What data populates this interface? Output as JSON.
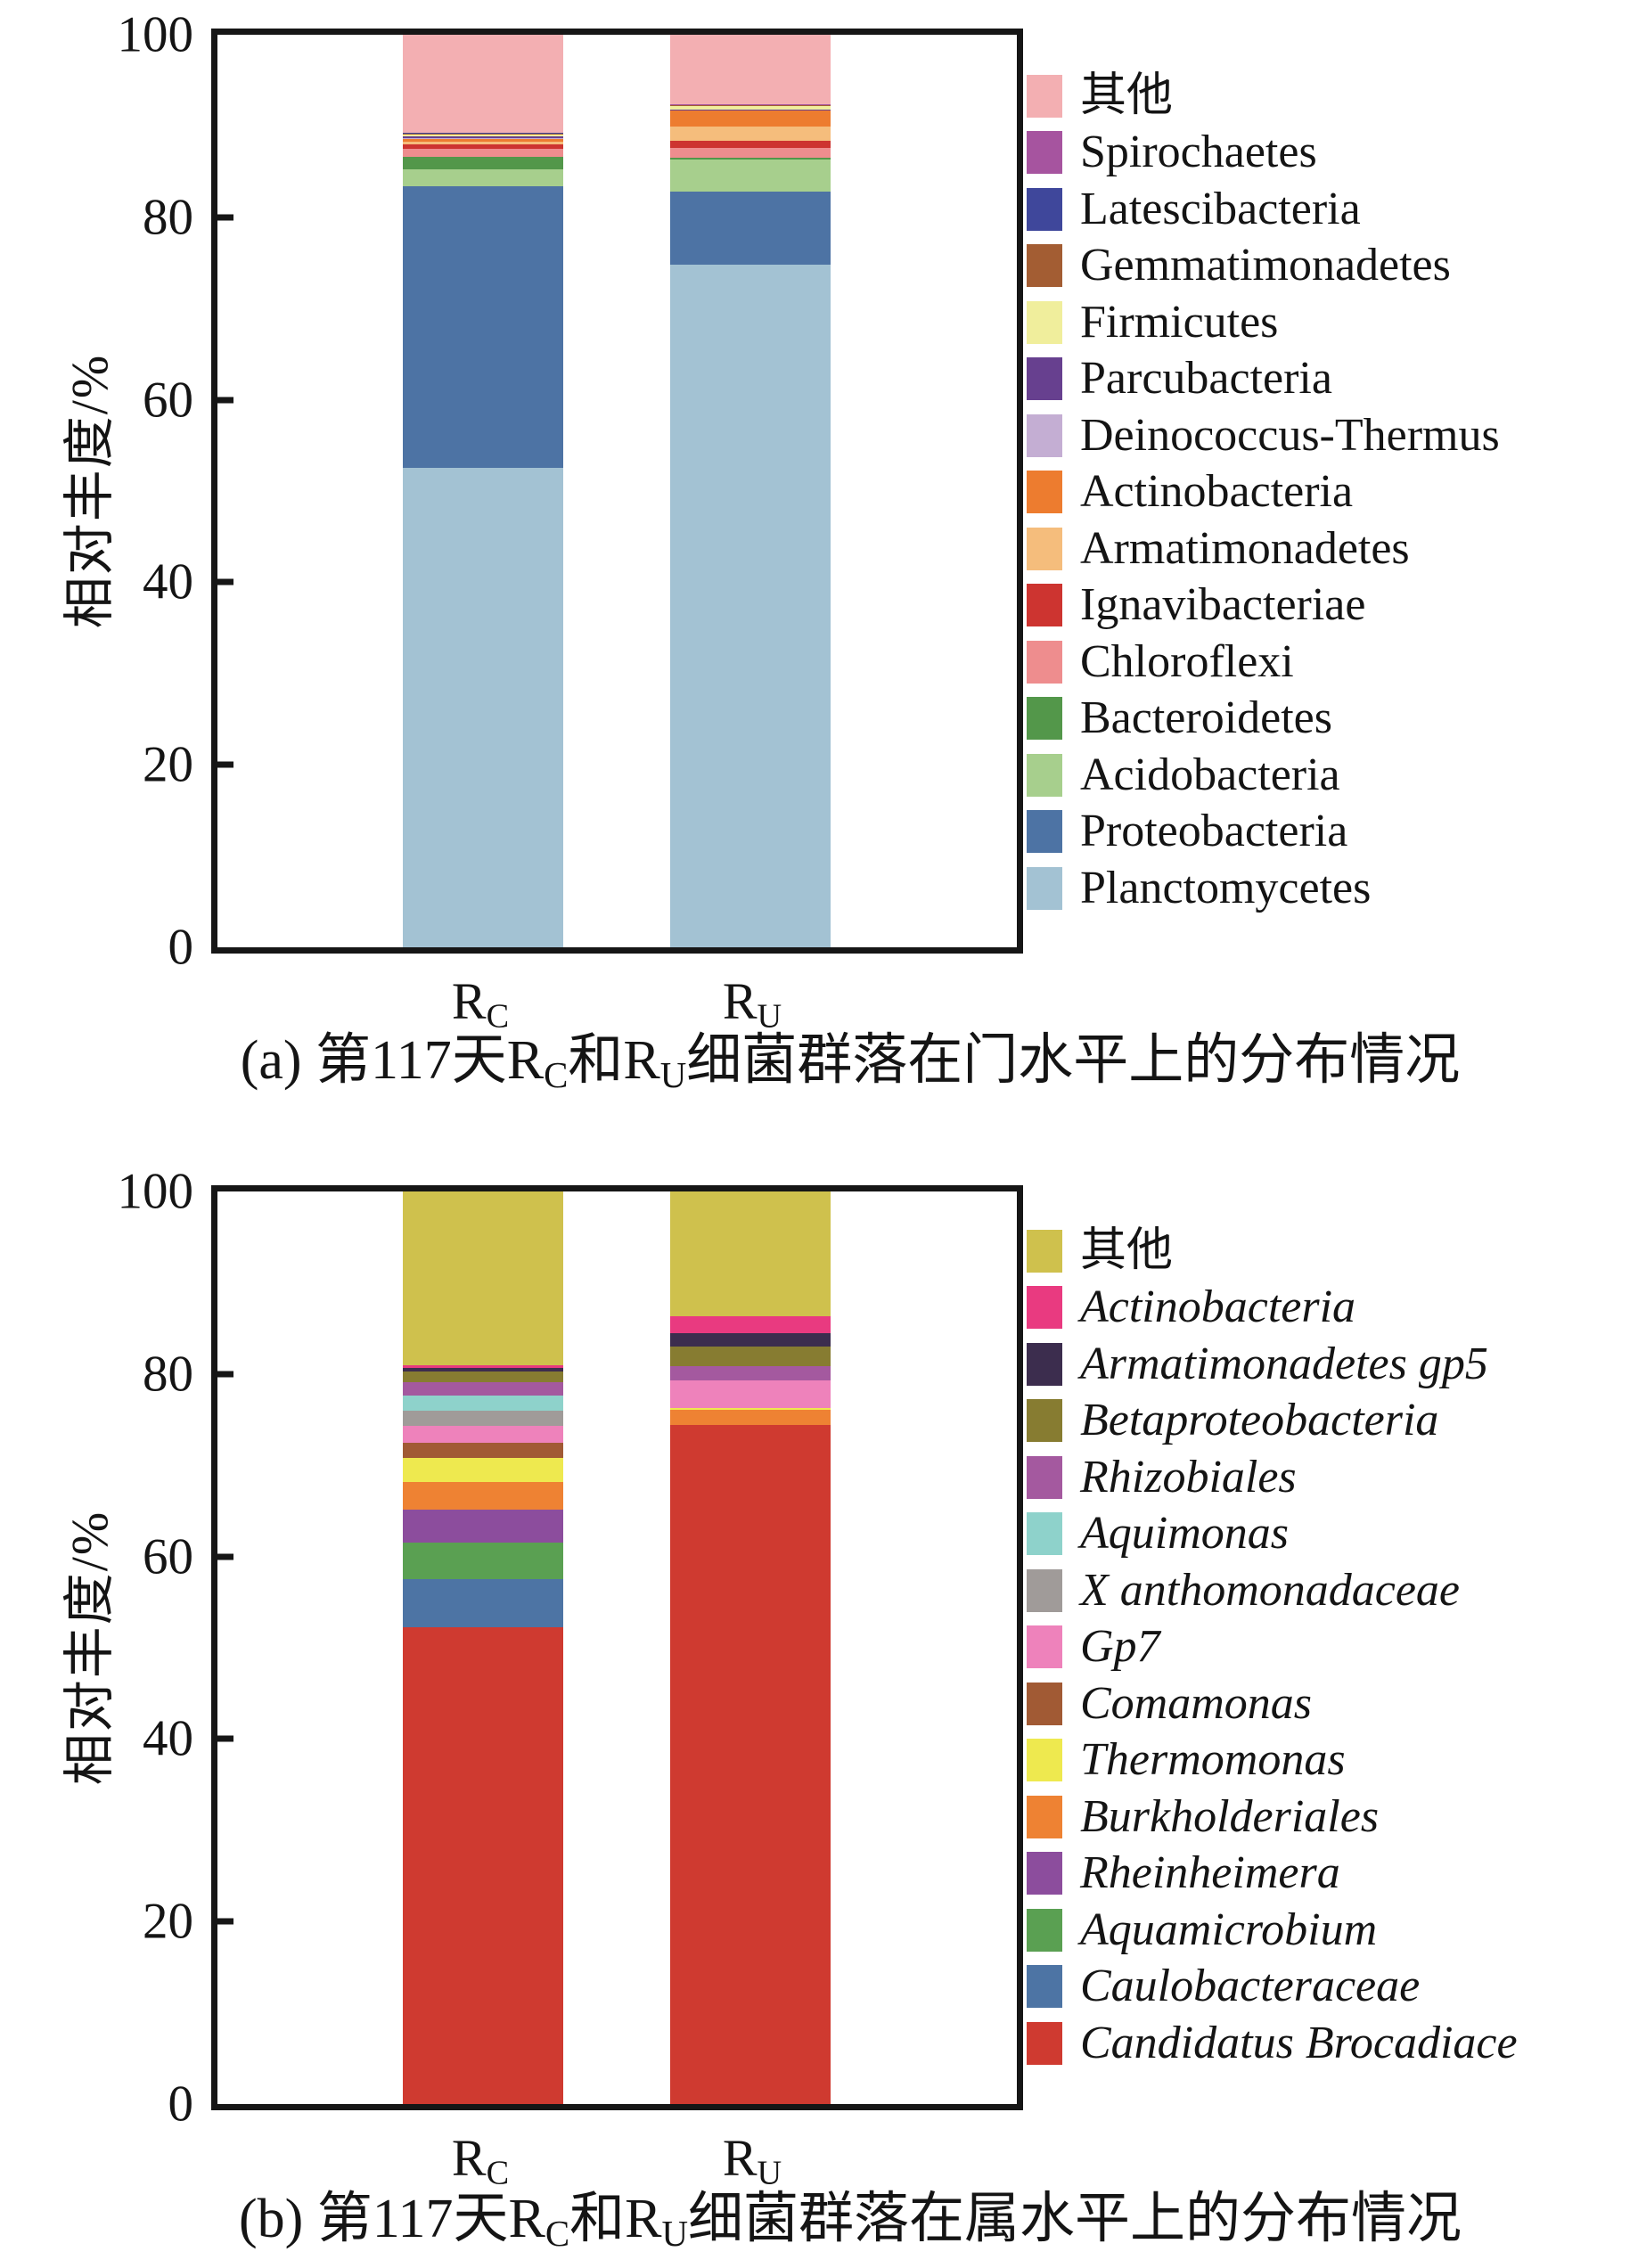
{
  "figure": {
    "y_axis_label": "相对丰度/%",
    "y_ticks": [
      100,
      80,
      60,
      40,
      20,
      0
    ]
  },
  "chart_data": [
    {
      "id": "a",
      "type": "bar",
      "subtype": "stacked-vertical",
      "title": "(a) 第117天RC和RU细菌群落在门水平上的分布情况",
      "caption_segments": [
        {
          "t": "(a) 第117天R"
        },
        {
          "t": "C",
          "sub": true
        },
        {
          "t": "和R"
        },
        {
          "t": "U",
          "sub": true
        },
        {
          "t": "细菌群落在门水平上的分布情况"
        }
      ],
      "ylabel": "相对丰度/%",
      "ylim": [
        0,
        100
      ],
      "grid": false,
      "legend_position": "right-outside",
      "legend_italic": false,
      "categories": [
        "RC",
        "RU"
      ],
      "category_labels": [
        {
          "main": "R",
          "sub": "C"
        },
        {
          "main": "R",
          "sub": "U"
        }
      ],
      "series_bottom_to_top": [
        {
          "name": "Planctomycetes",
          "color": "#a3c2d3",
          "values": [
            52.5,
            74.8
          ]
        },
        {
          "name": "Proteobacteria",
          "color": "#4d73a4",
          "values": [
            30.9,
            8.0
          ]
        },
        {
          "name": "Acidobacteria",
          "color": "#a7cf8d",
          "values": [
            1.9,
            3.5
          ]
        },
        {
          "name": "Bacteroidetes",
          "color": "#53974a",
          "values": [
            1.3,
            0.2
          ]
        },
        {
          "name": "Chloroflexi",
          "color": "#ee8d8e",
          "values": [
            0.9,
            1.1
          ]
        },
        {
          "name": "Ignavibacteriae",
          "color": "#cd3430",
          "values": [
            0.5,
            0.8
          ]
        },
        {
          "name": "Armatimonadetes",
          "color": "#f5bd7c",
          "values": [
            0.25,
            1.55
          ]
        },
        {
          "name": "Actinobacteria",
          "color": "#ed7c2f",
          "values": [
            0.35,
            1.75
          ]
        },
        {
          "name": "Deinococcus-Thermus",
          "color": "#c4aed3",
          "values": [
            0.05,
            0.05
          ]
        },
        {
          "name": "Parcubacteria",
          "color": "#67408f",
          "values": [
            0.2,
            0.05
          ]
        },
        {
          "name": "Firmicutes",
          "color": "#f0ee9c",
          "values": [
            0.25,
            0.4
          ]
        },
        {
          "name": "Gemmatimonadetes",
          "color": "#a35d33",
          "values": [
            0.05,
            0.05
          ]
        },
        {
          "name": "Latescibacteria",
          "color": "#3f479b",
          "values": [
            0.1,
            0.05
          ]
        },
        {
          "name": "Spirochaetes",
          "color": "#a6549f",
          "values": [
            0.05,
            0.05
          ]
        },
        {
          "name": "其他",
          "color": "#f3afb2",
          "values": [
            10.7,
            7.65
          ]
        }
      ]
    },
    {
      "id": "b",
      "type": "bar",
      "subtype": "stacked-vertical",
      "title": "(b) 第117天RC和RU细菌群落在属水平上的分布情况",
      "caption_segments": [
        {
          "t": "(b) 第117天R"
        },
        {
          "t": "C",
          "sub": true
        },
        {
          "t": "和R"
        },
        {
          "t": "U",
          "sub": true
        },
        {
          "t": "细菌群落在属水平上的分布情况"
        }
      ],
      "ylabel": "相对丰度/%",
      "ylim": [
        0,
        100
      ],
      "grid": false,
      "legend_position": "right-outside",
      "legend_italic": true,
      "categories": [
        "RC",
        "RU"
      ],
      "category_labels": [
        {
          "main": "R",
          "sub": "C"
        },
        {
          "main": "R",
          "sub": "U"
        }
      ],
      "series_bottom_to_top": [
        {
          "name": "Candidatus Brocadiace",
          "color": "#cf3a30",
          "values": [
            52.2,
            74.4
          ]
        },
        {
          "name": "Caulobacteraceae",
          "color": "#4d74a4",
          "values": [
            5.3,
            0
          ]
        },
        {
          "name": "Aquamicrobium",
          "color": "#5aa052",
          "values": [
            4.0,
            0
          ]
        },
        {
          "name": "Rheinheimera",
          "color": "#8c4d9d",
          "values": [
            3.6,
            0
          ]
        },
        {
          "name": "Burkholderiales",
          "color": "#ee8233",
          "values": [
            3.1,
            1.7
          ]
        },
        {
          "name": "Thermomonas",
          "color": "#eee94f",
          "values": [
            2.6,
            0.2
          ]
        },
        {
          "name": "Comamonas",
          "color": "#a15a34",
          "values": [
            1.7,
            0
          ]
        },
        {
          "name": "Gp7",
          "color": "#ee82bb",
          "values": [
            1.8,
            3.0
          ]
        },
        {
          "name": "X anthomonadaceae",
          "color": "#a09b99",
          "values": [
            1.7,
            0
          ]
        },
        {
          "name": "Aquimonas",
          "color": "#8ed2cb",
          "values": [
            1.6,
            0
          ]
        },
        {
          "name": "Rhizobiales",
          "color": "#a4599f",
          "values": [
            1.5,
            1.6
          ]
        },
        {
          "name": "Betaproteobacteria",
          "color": "#877c31",
          "values": [
            1.2,
            2.1
          ]
        },
        {
          "name": "Armatimonadetes gp5",
          "color": "#3c2d4e",
          "values": [
            0.4,
            1.5
          ]
        },
        {
          "name": "Actinobacteria",
          "color": "#e93a80",
          "values": [
            0.3,
            1.8
          ]
        },
        {
          "name": "其他",
          "color": "#cfc14d",
          "values": [
            19.0,
            13.7
          ]
        }
      ],
      "legend_non_italic_labels": [
        "其他"
      ]
    }
  ]
}
